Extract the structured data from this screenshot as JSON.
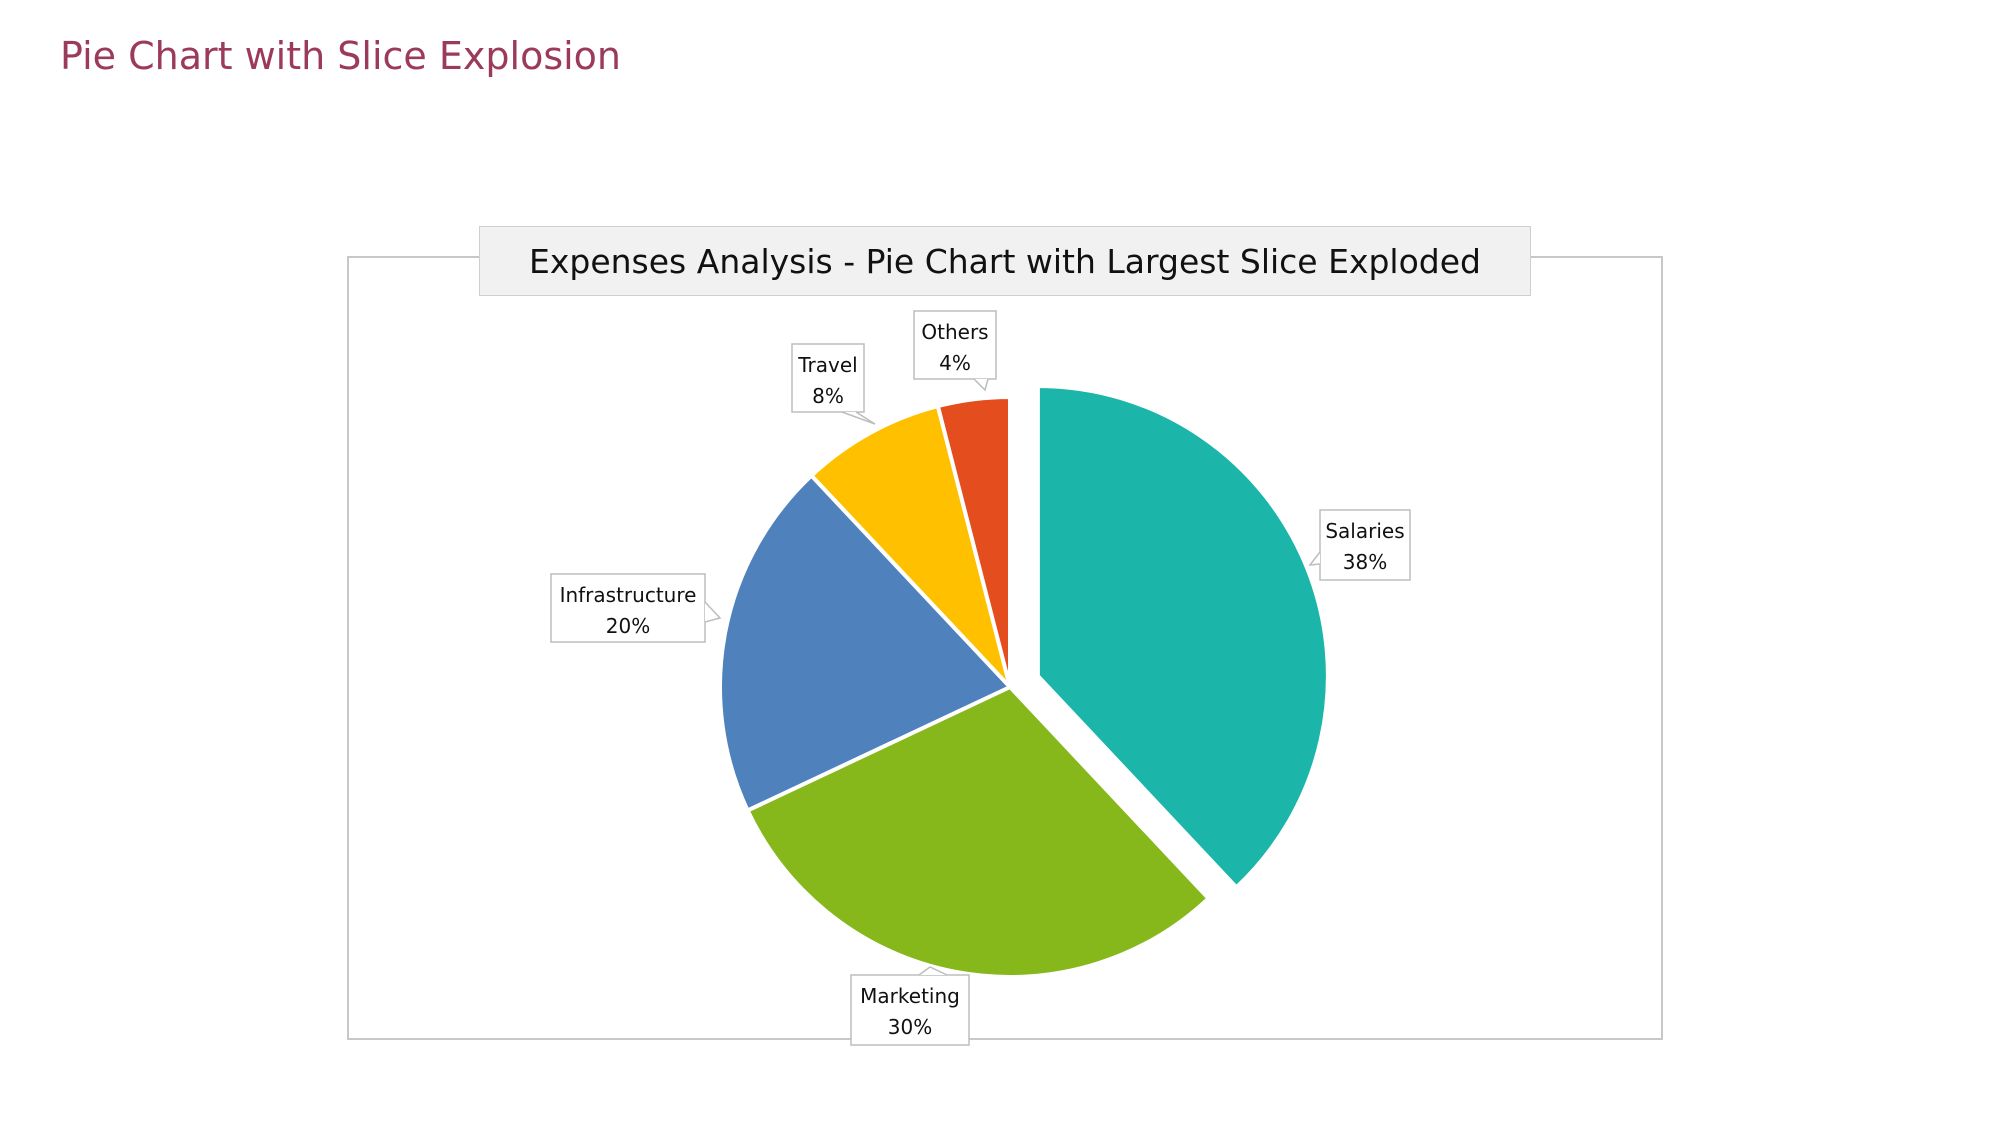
{
  "page": {
    "title": "Pie Chart with Slice Explosion"
  },
  "chart_data": {
    "type": "pie",
    "title": "Expenses Analysis - Pie Chart with Largest Slice Exploded",
    "start_angle_deg": 0,
    "direction": "clockwise",
    "exploded": "Salaries",
    "legend": "none",
    "slices": [
      {
        "label": "Salaries",
        "value": 38,
        "display": "38%",
        "color": "#1cb5a9"
      },
      {
        "label": "Marketing",
        "value": 30,
        "display": "30%",
        "color": "#86b81c"
      },
      {
        "label": "Infrastructure",
        "value": 20,
        "display": "20%",
        "color": "#4f81bd"
      },
      {
        "label": "Travel",
        "value": 8,
        "display": "8%",
        "color": "#ffc000"
      },
      {
        "label": "Others",
        "value": 4,
        "display": "4%",
        "color": "#e44d1e"
      }
    ]
  }
}
